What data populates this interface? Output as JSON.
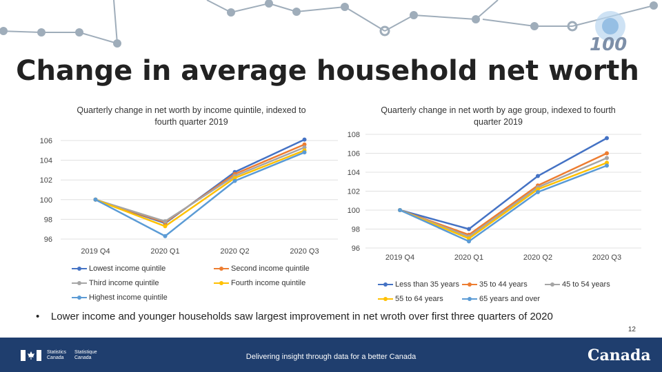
{
  "slide": {
    "title": "Change in average household net worth",
    "bullet": "Lower income and younger households saw largest improvement in net wroth over first three quarters of 2020",
    "page_number": "12",
    "badge": "100",
    "footer": {
      "tagline": "Delivering insight through data for a better Canada",
      "agency_en": "Statistics Canada",
      "agency_fr": "Statistique Canada",
      "wordmark": "Canada"
    }
  },
  "chart_data": [
    {
      "type": "line",
      "title": "Quarterly change in net worth by income quintile, indexed to fourth quarter 2019",
      "categories": [
        "2019 Q4",
        "2020 Q1",
        "2020 Q2",
        "2020 Q3"
      ],
      "ylim": [
        96,
        106
      ],
      "yticks": [
        "96",
        "98",
        "100",
        "102",
        "104",
        "106"
      ],
      "series": [
        {
          "name": "Lowest income quintile",
          "color": "#4472c4",
          "values": [
            100,
            97.6,
            102.8,
            106.1
          ]
        },
        {
          "name": "Second income quintile",
          "color": "#ed7d31",
          "values": [
            100,
            97.7,
            102.6,
            105.6
          ]
        },
        {
          "name": "Third income quintile",
          "color": "#a5a5a5",
          "values": [
            100,
            97.8,
            102.4,
            105.3
          ]
        },
        {
          "name": "Fourth income quintile",
          "color": "#ffc000",
          "values": [
            100,
            97.3,
            102.2,
            105.0
          ]
        },
        {
          "name": "Highest income quintile",
          "color": "#5b9bd5",
          "values": [
            100,
            96.3,
            101.9,
            104.8
          ]
        }
      ]
    },
    {
      "type": "line",
      "title": "Quarterly change in net worth by age group, indexed to fourth quarter 2019",
      "categories": [
        "2019 Q4",
        "2020 Q1",
        "2020 Q2",
        "2020 Q3"
      ],
      "ylim": [
        96,
        108
      ],
      "yticks": [
        "96",
        "98",
        "100",
        "102",
        "104",
        "106",
        "108"
      ],
      "series": [
        {
          "name": "Less than 35 years",
          "color": "#4472c4",
          "values": [
            100,
            98.0,
            103.6,
            107.6
          ]
        },
        {
          "name": "35 to 44 years",
          "color": "#ed7d31",
          "values": [
            100,
            97.4,
            102.6,
            106.0
          ]
        },
        {
          "name": "45 to 54 years",
          "color": "#a5a5a5",
          "values": [
            100,
            97.2,
            102.4,
            105.5
          ]
        },
        {
          "name": "55 to 64 years",
          "color": "#ffc000",
          "values": [
            100,
            97.0,
            102.2,
            105.0
          ]
        },
        {
          "name": "65 years and over",
          "color": "#5b9bd5",
          "values": [
            100,
            96.7,
            101.9,
            104.7
          ]
        }
      ]
    }
  ]
}
